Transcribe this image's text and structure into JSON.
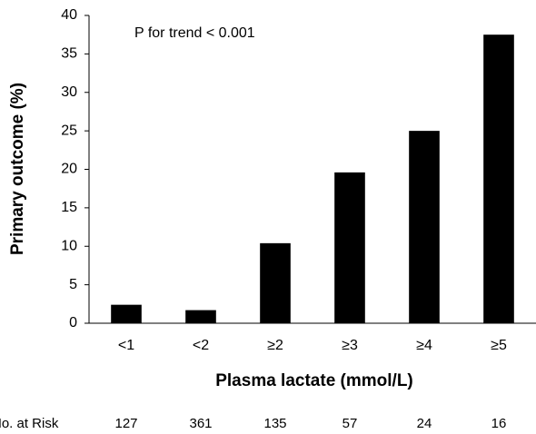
{
  "chart_data": {
    "type": "bar",
    "annotation": "P for trend < 0.001",
    "x_label": "Plasma lactate (mmol/L)",
    "y_label": "Primary outcome (%)",
    "categories": [
      "<1",
      "<2",
      "≥2",
      "≥3",
      "≥4",
      "≥5"
    ],
    "values": [
      2.4,
      1.7,
      10.4,
      19.6,
      25,
      37.5
    ],
    "color": "#000000",
    "ylim": [
      0,
      40
    ],
    "yticks": [
      0,
      5,
      10,
      15,
      20,
      25,
      30,
      35,
      40
    ],
    "grid": false,
    "at_risk_label": "No. at Risk",
    "at_risk": [
      127,
      361,
      135,
      57,
      24,
      16
    ]
  }
}
